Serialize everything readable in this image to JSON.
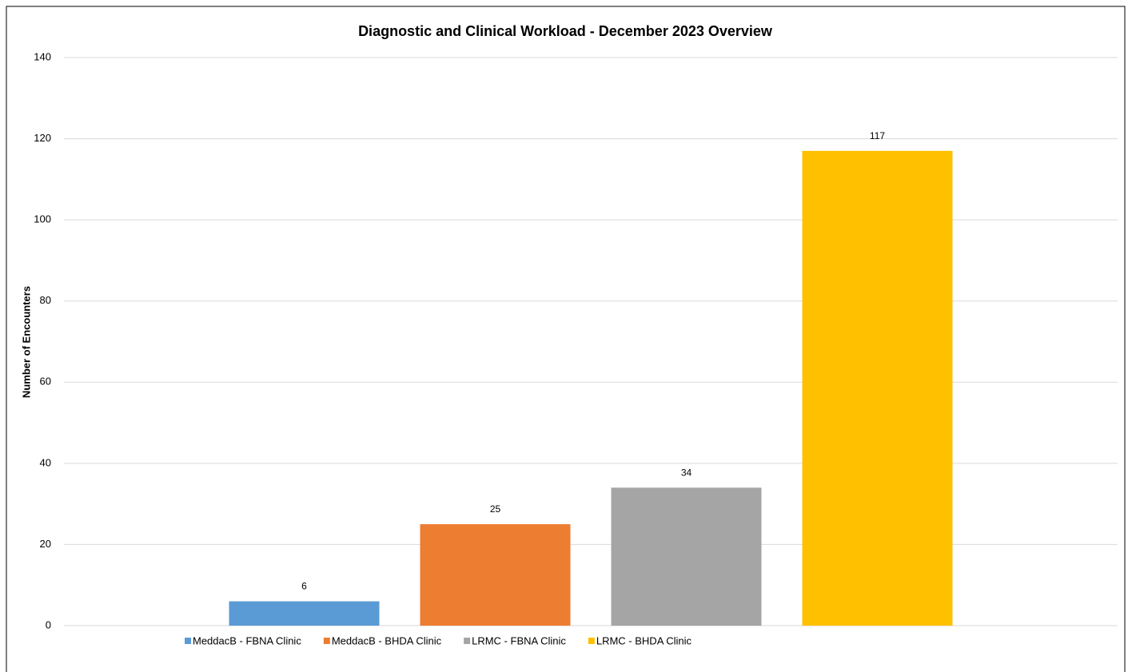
{
  "chart_data": {
    "type": "bar",
    "title": "Diagnostic and Clinical Workload - December 2023 Overview",
    "y_label": "Number of Encounters",
    "categories": [
      null
    ],
    "series": [
      {
        "name": "MeddacB - FBNA Clinic",
        "color": "#5b9bd5",
        "values": [
          6
        ]
      },
      {
        "name": "MeddacB - BHDA Clinic",
        "color": "#ed7d31",
        "values": [
          25
        ]
      },
      {
        "name": "LRMC - FBNA Clinic",
        "color": "#a5a5a5",
        "values": [
          34
        ]
      },
      {
        "name": "LRMC - BHDA Clinic",
        "color": "#ffc000",
        "values": [
          117
        ]
      }
    ],
    "ylim": [
      0,
      140
    ],
    "yticks": [
      0,
      20,
      40,
      60,
      80,
      100,
      120,
      140
    ],
    "grid": true,
    "legend": "bottom",
    "data_labels": true
  }
}
